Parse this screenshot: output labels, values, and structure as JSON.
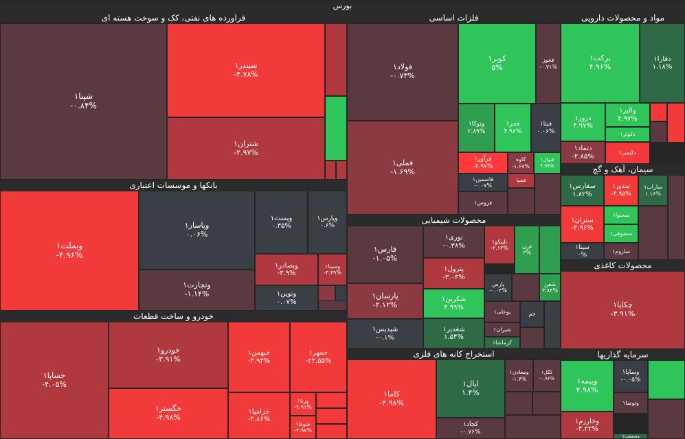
{
  "title": "بورس",
  "colors": {
    "dark_red": "#5a3a40",
    "mid_red": "#8b3a42",
    "red": "#b0393f",
    "bright_red": "#f23a3a",
    "pure_red": "#ff3a3a",
    "dark_gray": "#3a3f46",
    "dark_green": "#2d6a45",
    "mid_green": "#2f9e4e",
    "green": "#30c55a",
    "bright_green": "#31d65e",
    "header_bg": "#2b2b2b"
  },
  "sectors": [
    {
      "name": "فراورده های نفتی، کک و سوخت هسته ای",
      "tiles": [
        {
          "name": "شپنا۱",
          "change": "-۰.۸۴%",
          "color": "dark_red"
        },
        {
          "name": "شبندر۱",
          "change": "-۴.۷۸%",
          "color": "bright_red"
        },
        {
          "name": "شتران۱",
          "change": "-۲.۹۷%",
          "color": "red"
        },
        {
          "name": "",
          "change": "",
          "color": "red"
        },
        {
          "name": "",
          "change": "",
          "color": "green"
        },
        {
          "name": "",
          "change": "",
          "color": "red"
        },
        {
          "name": "",
          "change": "",
          "color": "red"
        },
        {
          "name": "",
          "change": "",
          "color": "red"
        }
      ]
    },
    {
      "name": "بانکها و موسسات اعتباری",
      "tiles": [
        {
          "name": "وبملت۱",
          "change": "-۴.۹۶%",
          "color": "bright_red"
        },
        {
          "name": "وپاسار۱",
          "change": "۰.۰۶%",
          "color": "dark_gray"
        },
        {
          "name": "وتجارت۱",
          "change": "-۱.۱۴%",
          "color": "dark_red"
        },
        {
          "name": "وپست۱",
          "change": "۰.۳۵%",
          "color": "dark_gray"
        },
        {
          "name": "وپارس۱",
          "change": "۰.۶%",
          "color": "dark_gray"
        },
        {
          "name": "وبصادر۱",
          "change": "-۳.۹%",
          "color": "red"
        },
        {
          "name": "وسینا۱",
          "change": "-۳.۴۹%",
          "color": "red"
        },
        {
          "name": "ونوین۱",
          "change": "۰.۰۷%",
          "color": "dark_gray"
        },
        {
          "name": "",
          "change": "",
          "color": "mid_red"
        },
        {
          "name": "",
          "change": "",
          "color": "dark_gray"
        },
        {
          "name": "",
          "change": "",
          "color": "dark_red"
        }
      ]
    },
    {
      "name": "خودرو و ساخت قطعات",
      "tiles": [
        {
          "name": "خساپا۱",
          "change": "-۴.۰۵%",
          "color": "red"
        },
        {
          "name": "خودرو۱",
          "change": "-۳.۹۱%",
          "color": "red"
        },
        {
          "name": "خگستر۱",
          "change": "-۴.۹۸%",
          "color": "bright_red"
        },
        {
          "name": "خبهمن۱",
          "change": "-۴.۹۳%",
          "color": "bright_red"
        },
        {
          "name": "خمهر۱",
          "change": "-۲۳.۵۵%",
          "color": "bright_red"
        },
        {
          "name": "خزامیا۱",
          "change": "-۴.۸۶%",
          "color": "bright_red"
        },
        {
          "name": "ورنا۱",
          "change": "-۴.۹۱%",
          "color": "bright_red"
        },
        {
          "name": "ختوقا۱",
          "change": "-۴.۹۷%",
          "color": "bright_red"
        },
        {
          "name": "",
          "change": "",
          "color": "bright_red"
        },
        {
          "name": "",
          "change": "",
          "color": "bright_red"
        },
        {
          "name": "",
          "change": "",
          "color": "bright_red"
        }
      ]
    },
    {
      "name": "فلزات اساسی",
      "tiles": [
        {
          "name": "فولاد۱",
          "change": "-۰.۷۳%",
          "color": "dark_red"
        },
        {
          "name": "فملی۱",
          "change": "-۱.۶۹%",
          "color": "mid_red"
        },
        {
          "name": "کویر۱",
          "change": "۵%",
          "color": "green"
        },
        {
          "name": "فخوز",
          "change": "-۰.۷۱%",
          "color": "dark_red"
        },
        {
          "name": "وتوکا۱",
          "change": "۲.۸۹%",
          "color": "mid_green"
        },
        {
          "name": "فجر۱",
          "change": "۴.۹۶%",
          "color": "green"
        },
        {
          "name": "فیتا۱",
          "change": "۰.۰۶%",
          "color": "dark_gray"
        },
        {
          "name": "فرآور۱",
          "change": "-۴.۹۷%",
          "color": "pure_red"
        },
        {
          "name": "کاوه",
          "change": "-۱.۶۷%",
          "color": "mid_red"
        },
        {
          "name": "فنوال۱",
          "change": "۴.۹۹%",
          "color": "green"
        },
        {
          "name": "فاسمین۱",
          "change": "-۰.۰۷%",
          "color": "dark_gray"
        },
        {
          "name": "فروس۱",
          "change": "",
          "color": "dark_red"
        },
        {
          "name": "فسپا",
          "change": "",
          "color": "red"
        },
        {
          "name": "",
          "change": "",
          "color": "dark_red"
        },
        {
          "name": "",
          "change": "",
          "color": "dark_red"
        }
      ]
    },
    {
      "name": "محصولات شیمیایی",
      "tiles": [
        {
          "name": "فارس۱",
          "change": "-۱.۰۵%",
          "color": "dark_red"
        },
        {
          "name": "نوری۱",
          "change": "-۰.۳۸%",
          "color": "dark_red"
        },
        {
          "name": "تاپیکو۱",
          "change": "-۲.۱۳%",
          "color": "red"
        },
        {
          "name": "فرن",
          "change": "۳%",
          "color": "mid_green"
        },
        {
          "name": "",
          "change": "",
          "color": "mid_green"
        },
        {
          "name": "پترول۱",
          "change": "-۳.۰۳%",
          "color": "red"
        },
        {
          "name": "پارس",
          "change": "-۰.۰۳%",
          "color": "dark_gray"
        },
        {
          "name": "",
          "change": "",
          "color": "dark_red"
        },
        {
          "name": "شفن",
          "change": "۳.۸۴%",
          "color": "mid_green"
        },
        {
          "name": "پارسان۱",
          "change": "-۲.۱۲%",
          "color": "mid_red"
        },
        {
          "name": "شکربن۱",
          "change": "۴.۹۹%",
          "color": "green"
        },
        {
          "name": "بوعلی۱",
          "change": "",
          "color": "dark_red"
        },
        {
          "name": "شپدیس۱",
          "change": "-۰.۱%",
          "color": "dark_gray"
        },
        {
          "name": "شغدیر۱",
          "change": "۱.۵۴%",
          "color": "dark_green"
        },
        {
          "name": "شیران۱",
          "change": "",
          "color": "dark_red"
        },
        {
          "name": "کرماشا۱",
          "change": "",
          "color": "dark_green"
        },
        {
          "name": "جم",
          "change": "",
          "color": "dark_gray"
        },
        {
          "name": "",
          "change": "",
          "color": "dark_red"
        },
        {
          "name": "",
          "change": "",
          "color": "dark_gray"
        }
      ]
    },
    {
      "name": "استخراج کانه های فلزی",
      "tiles": [
        {
          "name": "کاما۱",
          "change": "-۴.۹۸%",
          "color": "bright_red"
        },
        {
          "name": "اپال۱",
          "change": "۱.۴%",
          "color": "dark_green"
        },
        {
          "name": "کچاد۱",
          "change": "-۰.۷۶%",
          "color": "dark_red"
        },
        {
          "name": "ومعادن۱",
          "change": "-۱.۷%",
          "color": "dark_red"
        },
        {
          "name": "کگل۱",
          "change": "-۰.۹۶%",
          "color": "dark_red"
        },
        {
          "name": "",
          "change": "",
          "color": "dark_red"
        },
        {
          "name": "",
          "change": "",
          "color": "dark_red"
        },
        {
          "name": "",
          "change": "",
          "color": "dark_red"
        }
      ]
    },
    {
      "name": "مواد و محصولات دارویی",
      "tiles": [
        {
          "name": "برکت۱",
          "change": "۴.۹۶%",
          "color": "green"
        },
        {
          "name": "دفارا۱",
          "change": "۱.۱۸%",
          "color": "dark_green"
        },
        {
          "name": "دروز۱",
          "change": "۴.۹۷%",
          "color": "green"
        },
        {
          "name": "والبر۱",
          "change": "۴.۹۷%",
          "color": "green"
        },
        {
          "name": "دکوثر۱",
          "change": "",
          "color": "green"
        },
        {
          "name": "دتماد۱",
          "change": "-۲.۸۵%",
          "color": "mid_red"
        },
        {
          "name": "دکیمی۱",
          "change": "",
          "color": "bright_red"
        },
        {
          "name": "",
          "change": "",
          "color": "bright_red"
        },
        {
          "name": "",
          "change": "",
          "color": "bright_red"
        },
        {
          "name": "",
          "change": "",
          "color": "dark_red"
        }
      ]
    },
    {
      "name": "سیمان، آهک و گچ",
      "tiles": [
        {
          "name": "سفارس۱",
          "change": "۱.۸۲%",
          "color": "dark_green"
        },
        {
          "name": "سدور۱",
          "change": "-۴.۹۵%",
          "color": "bright_red"
        },
        {
          "name": "ساراب۱",
          "change": "۱.۱۶%",
          "color": "dark_green"
        },
        {
          "name": "ستران۱",
          "change": "-۴.۹۶%",
          "color": "bright_red"
        },
        {
          "name": "سجنوا۱",
          "change": "",
          "color": "green"
        },
        {
          "name": "سصوفی۱",
          "change": "",
          "color": "green"
        },
        {
          "name": "سیتا۱",
          "change": "۰%",
          "color": "dark_gray"
        },
        {
          "name": "ساروم۱",
          "change": "",
          "color": "dark_red"
        },
        {
          "name": "",
          "change": "",
          "color": "dark_red"
        },
        {
          "name": "",
          "change": "",
          "color": "dark_red"
        }
      ]
    },
    {
      "name": "محصولات کاغذی",
      "tiles": [
        {
          "name": "چکاپا۱",
          "change": "-۳.۹۱%",
          "color": "red"
        }
      ]
    },
    {
      "name": "سرمایه گذاریها",
      "tiles": [
        {
          "name": "وبیمه۱",
          "change": "۴.۹۸%",
          "color": "green"
        },
        {
          "name": "وساپا۱",
          "change": "-۰.۰۵%",
          "color": "dark_gray"
        },
        {
          "name": "وتوصا۱",
          "change": "",
          "color": "dark_red"
        },
        {
          "name": "وخارزم۱",
          "change": "-۴.۲۲%",
          "color": "red"
        },
        {
          "name": "وصنعت۱",
          "change": "",
          "color": "dark_green"
        },
        {
          "name": "",
          "change": "",
          "color": "green"
        },
        {
          "name": "",
          "change": "",
          "color": "dark_red"
        }
      ]
    }
  ]
}
